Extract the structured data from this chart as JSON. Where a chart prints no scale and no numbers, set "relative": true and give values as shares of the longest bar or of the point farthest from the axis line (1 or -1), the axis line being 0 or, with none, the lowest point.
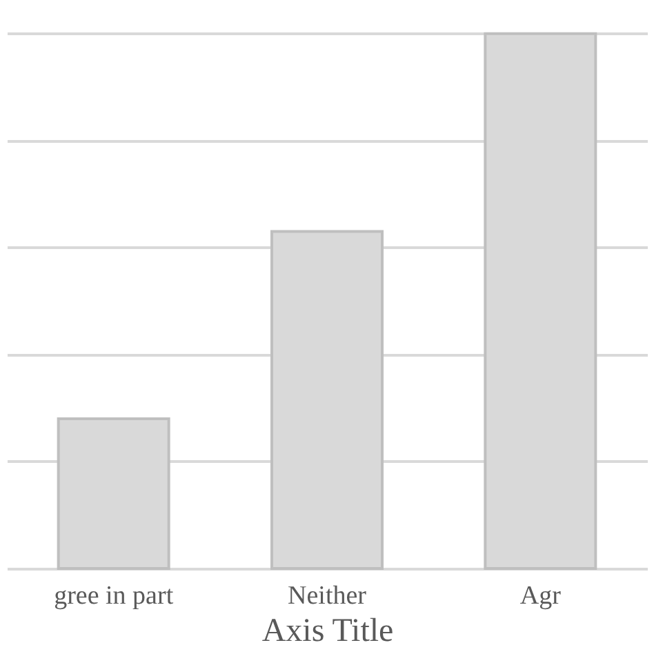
{
  "chart_data": {
    "type": "bar",
    "xlabel": "Axis Title",
    "categories": [
      "gree in part",
      "Neither",
      "Agr"
    ],
    "values": [
      0.28,
      0.63,
      1
    ],
    "color": "#d9d9d9",
    "relative": true,
    "grid": "y"
  }
}
